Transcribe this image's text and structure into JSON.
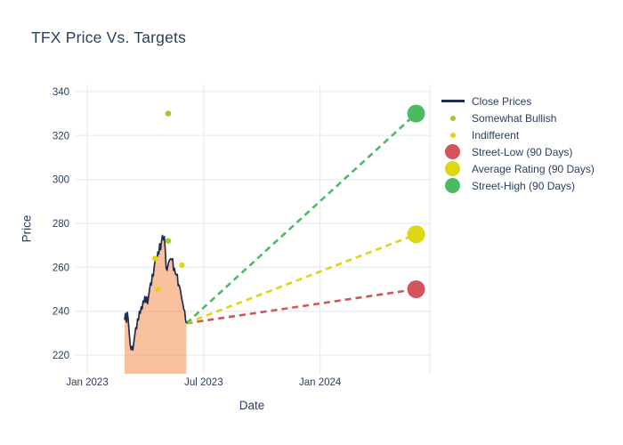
{
  "title": "TFX Price Vs. Targets",
  "x_axis_label": "Date",
  "y_axis_label": "Price",
  "colors": {
    "title_text": "#2a3f5f",
    "axis_text": "#2a3f5f",
    "grid": "#e8eef7",
    "background": "#ffffff",
    "close_line": "#212d4f",
    "area_fill": "#f48e4d",
    "somewhat_bullish": "#9ecb2d",
    "indifferent": "#e4d31b",
    "street_low": "#d4545c",
    "average_rating": "#ddd615",
    "street_high": "#4bbb63"
  },
  "legend": [
    {
      "label": "Close Prices",
      "swatch": "line",
      "color_key": "close_line"
    },
    {
      "label": "Somewhat Bullish",
      "swatch": "dot-small",
      "color_key": "somewhat_bullish"
    },
    {
      "label": "Indifferent",
      "swatch": "dot-small",
      "color_key": "indifferent"
    },
    {
      "label": "Street-Low (90 Days)",
      "swatch": "dot-large",
      "color_key": "street_low"
    },
    {
      "label": "Average Rating (90 Days)",
      "swatch": "dot-large",
      "color_key": "average_rating"
    },
    {
      "label": "Street-High (90 Days)",
      "swatch": "dot-large",
      "color_key": "street_high"
    }
  ],
  "chart_data": {
    "type": "area",
    "title": "TFX Price Vs. Targets",
    "xlabel": "Date",
    "ylabel": "Price",
    "grid": true,
    "legend_position": "right",
    "x_unit": "months since 2023-01-01",
    "xlim_months": [
      -0.6,
      17.75
    ],
    "ylim": [
      211.5,
      343.2
    ],
    "y_ticks": [
      220,
      240,
      260,
      280,
      300,
      320,
      340
    ],
    "x_ticks": [
      {
        "m": 0,
        "label": "Jan 2023"
      },
      {
        "m": 6,
        "label": "Jul 2023"
      },
      {
        "m": 12,
        "label": "Jan 2024"
      },
      {
        "m": 17.66,
        "label": ""
      }
    ],
    "series": {
      "close_prices": {
        "name": "Close Prices",
        "type": "line_area_to_bottom",
        "x_start_month": 1.923,
        "x_end_month": 5.113,
        "approx_date_range": [
          "2023-02-28",
          "2023-06-02"
        ],
        "values": [
          236,
          239,
          235,
          239.5,
          236,
          230,
          225,
          222.5,
          224,
          222.3,
          226,
          229,
          232.5,
          232,
          236.5,
          236,
          240,
          239,
          242,
          241,
          244.7,
          244,
          246.7,
          244,
          246.5,
          243.4,
          247,
          250,
          252.8,
          252,
          256.8,
          256,
          260,
          262.9,
          264.5,
          263.5,
          267,
          266,
          270.7,
          268,
          272,
          274.5,
          272.5,
          274,
          268,
          259.5,
          258.6,
          261,
          262.7,
          263.5,
          263.9,
          263.5,
          263.9,
          258.6,
          259.5,
          257,
          256.5,
          256.8,
          251.6,
          252,
          250.4,
          248,
          245.5,
          243.5,
          241,
          240.2,
          236,
          234.5
        ]
      },
      "analyst_ratings": [
        {
          "name": "Somewhat Bullish",
          "color_key": "somewhat_bullish",
          "marker_radius": 3.2,
          "points": [
            {
              "month": 4.17,
              "price": 330
            },
            {
              "month": 4.17,
              "price": 272
            }
          ]
        },
        {
          "name": "Indifferent",
          "color_key": "indifferent",
          "marker_radius": 3.2,
          "points": [
            {
              "month": 3.5,
              "price": 264
            },
            {
              "month": 3.64,
              "price": 250
            },
            {
              "month": 4.88,
              "price": 261
            }
          ]
        }
      ],
      "price_targets": {
        "month": 16.95,
        "approx_date": "2024-05-29",
        "marker_radius": 10,
        "points": [
          {
            "name": "Street-Low (90 Days)",
            "price": 250,
            "color_key": "street_low"
          },
          {
            "name": "Average Rating (90 Days)",
            "price": 275,
            "color_key": "average_rating"
          },
          {
            "name": "Street-High (90 Days)",
            "price": 330,
            "color_key": "street_high"
          }
        ]
      },
      "target_lines": [
        {
          "from": {
            "month": 5.113,
            "price": 234.5
          },
          "to": {
            "month": 16.95,
            "price": 250
          },
          "color_key": "street_low"
        },
        {
          "from": {
            "month": 5.113,
            "price": 234.5
          },
          "to": {
            "month": 16.95,
            "price": 275
          },
          "color_key": "average_rating"
        },
        {
          "from": {
            "month": 5.113,
            "price": 234.5
          },
          "to": {
            "month": 16.95,
            "price": 330
          },
          "color_key": "street_high"
        }
      ]
    }
  }
}
